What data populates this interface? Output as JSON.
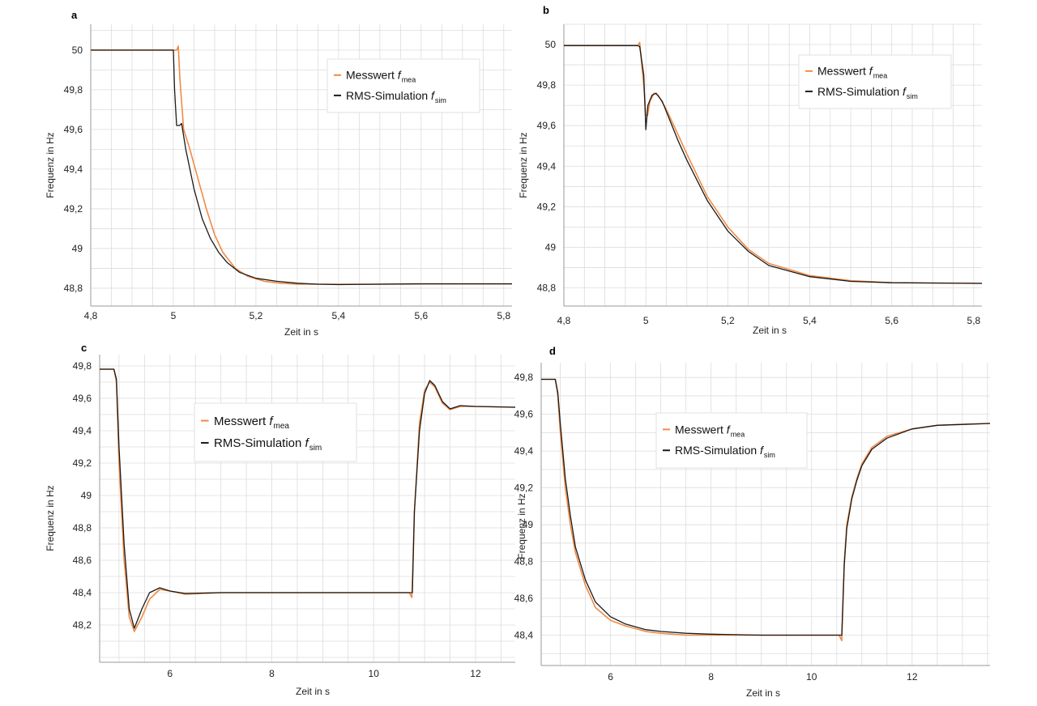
{
  "colors": {
    "measured": "#f08a45",
    "simulated": "#1a1a1a",
    "grid": "#dcdcdc",
    "axis": "#9a9a9a"
  },
  "chart_data": [
    {
      "panel": "a",
      "type": "line",
      "xlabel": "Zeit in s",
      "ylabel": "Frequenz in Hz",
      "xlim": [
        4.8,
        5.82
      ],
      "ylim": [
        48.71,
        50.13
      ],
      "xticks": [
        4.8,
        5.0,
        5.2,
        5.4,
        5.6,
        5.8
      ],
      "xtick_labels": [
        "4,8",
        "5",
        "5,2",
        "5,4",
        "5,6",
        "5,8"
      ],
      "yticks": [
        48.8,
        49.0,
        49.2,
        49.4,
        49.6,
        49.8,
        50.0
      ],
      "ytick_labels": [
        "48,8",
        "49",
        "49,2",
        "49,4",
        "49,6",
        "49,8",
        "50"
      ],
      "xgrid_step": 0.05,
      "ygrid_step": 0.1,
      "legend": {
        "entries": [
          {
            "label": "Messwert ",
            "sym": "f",
            "sub": "mea"
          },
          {
            "label": "RMS-Simulation ",
            "sym": "f",
            "sub": "sim"
          }
        ]
      },
      "series": [
        {
          "name": "Messwert f_mea",
          "color_key": "measured",
          "x": [
            4.8,
            5.0,
            5.008,
            5.012,
            5.016,
            5.025,
            5.04,
            5.06,
            5.08,
            5.1,
            5.12,
            5.15,
            5.18,
            5.22,
            5.26,
            5.3,
            5.35,
            5.4,
            5.5,
            5.6,
            5.82
          ],
          "y": [
            50.0,
            50.0,
            50.0,
            50.02,
            49.85,
            49.6,
            49.5,
            49.35,
            49.2,
            49.07,
            48.98,
            48.9,
            48.86,
            48.835,
            48.825,
            48.82,
            48.82,
            48.82,
            48.82,
            48.822,
            48.822
          ]
        },
        {
          "name": "RMS-Simulation f_sim",
          "color_key": "simulated",
          "x": [
            4.8,
            5.0,
            5.003,
            5.008,
            5.015,
            5.02,
            5.03,
            5.05,
            5.07,
            5.09,
            5.11,
            5.13,
            5.16,
            5.2,
            5.25,
            5.3,
            5.35,
            5.4,
            5.5,
            5.6,
            5.82
          ],
          "y": [
            50.0,
            50.0,
            49.8,
            49.62,
            49.62,
            49.63,
            49.5,
            49.3,
            49.15,
            49.05,
            48.98,
            48.93,
            48.88,
            48.85,
            48.835,
            48.825,
            48.82,
            48.818,
            48.82,
            48.822,
            48.822
          ]
        }
      ]
    },
    {
      "panel": "b",
      "type": "line",
      "xlabel": "Zeit in s",
      "ylabel": "Frequenz in Hz",
      "xlim": [
        4.8,
        5.82
      ],
      "ylim": [
        48.71,
        50.1
      ],
      "xticks": [
        4.8,
        5.0,
        5.2,
        5.4,
        5.6,
        5.8
      ],
      "xtick_labels": [
        "4,8",
        "5",
        "5,2",
        "5,4",
        "5,6",
        "5,8"
      ],
      "yticks": [
        48.8,
        49.0,
        49.2,
        49.4,
        49.6,
        49.8,
        50.0
      ],
      "ytick_labels": [
        "48,8",
        "49",
        "49,2",
        "49,4",
        "49,6",
        "49,8",
        "50"
      ],
      "xgrid_step": 0.05,
      "ygrid_step": 0.1,
      "legend": {
        "entries": [
          {
            "label": "Messwert ",
            "sym": "f",
            "sub": "mea"
          },
          {
            "label": "RMS-Simulation ",
            "sym": "f",
            "sub": "sim"
          }
        ]
      },
      "series": [
        {
          "name": "Messwert f_mea",
          "color_key": "measured",
          "x": [
            4.8,
            4.98,
            4.985,
            4.99,
            4.995,
            5.0,
            5.004,
            5.01,
            5.02,
            5.03,
            5.05,
            5.08,
            5.1,
            5.15,
            5.2,
            5.25,
            5.3,
            5.4,
            5.5,
            5.6,
            5.82
          ],
          "y": [
            49.995,
            49.995,
            50.01,
            49.9,
            49.8,
            49.65,
            49.65,
            49.72,
            49.76,
            49.75,
            49.68,
            49.55,
            49.46,
            49.25,
            49.1,
            48.99,
            48.92,
            48.86,
            48.835,
            48.825,
            48.822
          ]
        },
        {
          "name": "RMS-Simulation f_sim",
          "color_key": "simulated",
          "x": [
            4.8,
            4.98,
            4.985,
            4.99,
            4.995,
            5.0,
            5.005,
            5.015,
            5.025,
            5.04,
            5.06,
            5.08,
            5.1,
            5.15,
            5.2,
            5.25,
            5.3,
            5.4,
            5.5,
            5.6,
            5.82
          ],
          "y": [
            49.995,
            49.995,
            49.99,
            49.92,
            49.85,
            49.58,
            49.7,
            49.75,
            49.76,
            49.72,
            49.62,
            49.52,
            49.43,
            49.23,
            49.08,
            48.98,
            48.91,
            48.855,
            48.832,
            48.825,
            48.822
          ]
        }
      ]
    },
    {
      "panel": "c",
      "type": "line",
      "xlabel": "Zeit in s",
      "ylabel": "Frequenz in Hz",
      "xlim": [
        4.62,
        12.78
      ],
      "ylim": [
        47.97,
        49.87
      ],
      "xticks": [
        6,
        8,
        10,
        12
      ],
      "xtick_labels": [
        "6",
        "8",
        "10",
        "12"
      ],
      "yticks": [
        48.2,
        48.4,
        48.6,
        48.8,
        49.0,
        49.2,
        49.4,
        49.6,
        49.8
      ],
      "ytick_labels": [
        "48,2",
        "48,4",
        "48,6",
        "48,8",
        "49",
        "49,2",
        "49,4",
        "49,6",
        "49,8"
      ],
      "xgrid_step": 0.5,
      "ygrid_step": 0.1,
      "legend": {
        "entries": [
          {
            "label": "Messwert ",
            "sym": "f",
            "sub": "mea"
          },
          {
            "label": "RMS-Simulation ",
            "sym": "f",
            "sub": "sim"
          }
        ]
      },
      "series": [
        {
          "name": "Messwert f_mea",
          "color_key": "measured",
          "x": [
            4.62,
            4.9,
            4.95,
            5.0,
            5.1,
            5.2,
            5.3,
            5.45,
            5.6,
            5.8,
            6.0,
            6.3,
            7.0,
            8.0,
            9.0,
            10.0,
            10.7,
            10.75,
            10.8,
            10.9,
            11.0,
            11.1,
            11.2,
            11.35,
            11.5,
            11.7,
            12.0,
            12.78
          ],
          "y": [
            49.78,
            49.78,
            49.7,
            49.2,
            48.6,
            48.25,
            48.16,
            48.25,
            48.36,
            48.42,
            48.41,
            48.39,
            48.4,
            48.4,
            48.4,
            48.4,
            48.4,
            48.37,
            48.9,
            49.45,
            49.65,
            49.7,
            49.67,
            49.57,
            49.53,
            49.55,
            49.55,
            49.545
          ]
        },
        {
          "name": "RMS-Simulation f_sim",
          "color_key": "simulated",
          "x": [
            4.62,
            4.9,
            4.95,
            5.0,
            5.1,
            5.2,
            5.3,
            5.45,
            5.6,
            5.8,
            6.0,
            6.3,
            7.0,
            8.0,
            9.0,
            10.0,
            10.7,
            10.76,
            10.8,
            10.9,
            11.0,
            11.1,
            11.2,
            11.35,
            11.5,
            11.7,
            12.0,
            12.78
          ],
          "y": [
            49.78,
            49.78,
            49.72,
            49.3,
            48.7,
            48.3,
            48.18,
            48.3,
            48.4,
            48.43,
            48.41,
            48.395,
            48.4,
            48.4,
            48.4,
            48.4,
            48.4,
            48.4,
            48.9,
            49.4,
            49.63,
            49.71,
            49.68,
            49.58,
            49.535,
            49.555,
            49.55,
            49.545
          ]
        }
      ]
    },
    {
      "panel": "d",
      "type": "line",
      "xlabel": "Zeit in s",
      "ylabel": "Frequenz in Hz",
      "xlim": [
        4.62,
        13.55
      ],
      "ylim": [
        48.235,
        49.88
      ],
      "xticks": [
        6,
        8,
        10,
        12
      ],
      "xtick_labels": [
        "6",
        "8",
        "10",
        "12"
      ],
      "yticks": [
        48.4,
        48.6,
        48.8,
        49.0,
        49.2,
        49.4,
        49.6,
        49.8
      ],
      "ytick_labels": [
        "48,4",
        "48,6",
        "48,8",
        "49",
        "49,2",
        "49,4",
        "49,6",
        "49,8"
      ],
      "xgrid_step": 0.5,
      "ygrid_step": 0.1,
      "legend": {
        "entries": [
          {
            "label": "Messwert ",
            "sym": "f",
            "sub": "mea"
          },
          {
            "label": "RMS-Simulation ",
            "sym": "f",
            "sub": "sim"
          }
        ]
      },
      "series": [
        {
          "name": "Messwert f_mea",
          "color_key": "measured",
          "x": [
            4.62,
            4.9,
            4.95,
            5.0,
            5.1,
            5.2,
            5.3,
            5.5,
            5.7,
            6.0,
            6.3,
            6.7,
            7.0,
            7.5,
            8.0,
            9.0,
            10.0,
            10.55,
            10.6,
            10.65,
            10.7,
            10.8,
            10.9,
            11.0,
            11.2,
            11.5,
            12.0,
            12.5,
            13.0,
            13.55
          ],
          "y": [
            49.79,
            49.79,
            49.7,
            49.5,
            49.2,
            49.0,
            48.85,
            48.67,
            48.55,
            48.48,
            48.45,
            48.42,
            48.41,
            48.4,
            48.4,
            48.4,
            48.4,
            48.4,
            48.37,
            48.8,
            49.0,
            49.15,
            49.25,
            49.33,
            49.42,
            49.48,
            49.52,
            49.54,
            49.545,
            49.55
          ]
        },
        {
          "name": "RMS-Simulation f_sim",
          "color_key": "simulated",
          "x": [
            4.62,
            4.9,
            4.95,
            5.0,
            5.1,
            5.2,
            5.3,
            5.5,
            5.7,
            6.0,
            6.3,
            6.7,
            7.0,
            7.5,
            8.0,
            9.0,
            10.0,
            10.55,
            10.6,
            10.65,
            10.7,
            10.8,
            10.9,
            11.0,
            11.2,
            11.5,
            12.0,
            12.5,
            13.0,
            13.55
          ],
          "y": [
            49.79,
            49.79,
            49.72,
            49.55,
            49.25,
            49.05,
            48.88,
            48.7,
            48.58,
            48.5,
            48.46,
            48.43,
            48.42,
            48.41,
            48.405,
            48.4,
            48.4,
            48.4,
            48.4,
            48.78,
            48.98,
            49.14,
            49.24,
            49.32,
            49.41,
            49.47,
            49.52,
            49.54,
            49.545,
            49.55
          ]
        }
      ]
    }
  ]
}
